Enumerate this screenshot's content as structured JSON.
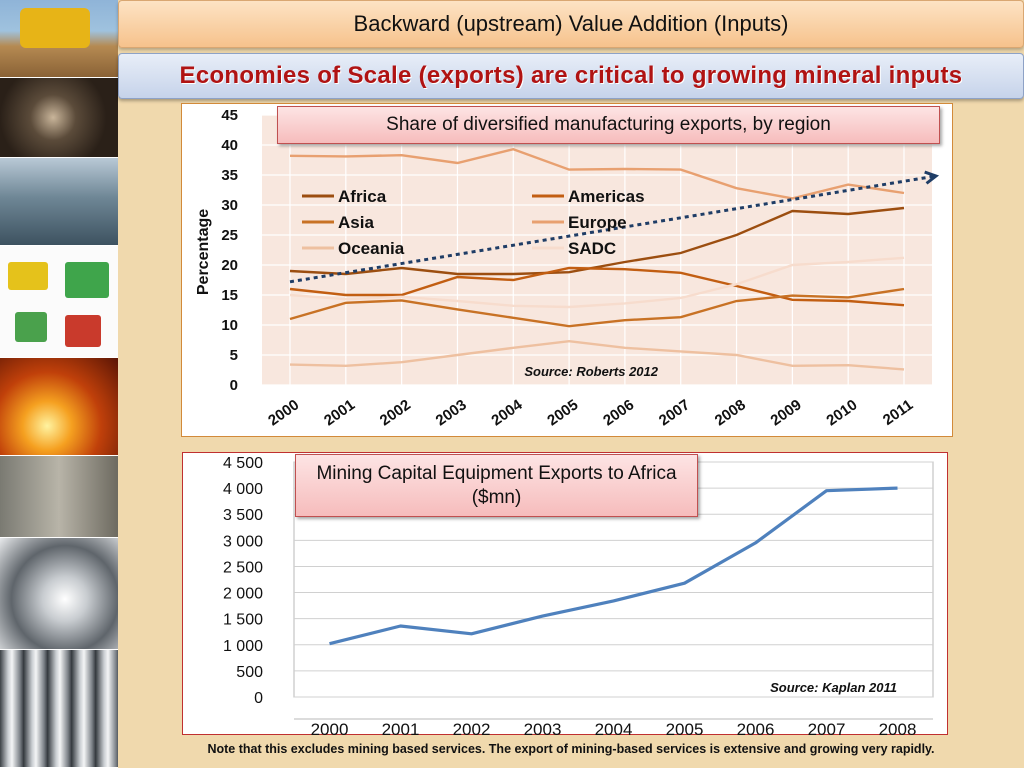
{
  "slide": {
    "title": "Backward (upstream) Value Addition (Inputs)",
    "subtitle": "Economies of Scale (exports) are critical to growing mineral inputs",
    "note": "Note that this excludes mining based services. The export of mining-based services is extensive and growing very rapidly."
  },
  "side_images": [
    "mining-truck",
    "underground-tunnel",
    "thickener-plant",
    "processing-equipment",
    "molten-metal-pour",
    "mill-machinery",
    "steel-coil",
    "steel-pipes"
  ],
  "chart_data": [
    {
      "type": "line",
      "title": "Share of diversified manufacturing exports, by region",
      "source": "Source: Roberts 2012",
      "ylabel": "Percentage",
      "xlabel": "",
      "categories": [
        "2000",
        "2001",
        "2002",
        "2003",
        "2004",
        "2005",
        "2006",
        "2007",
        "2008",
        "2009",
        "2010",
        "2011"
      ],
      "yticks": [
        "0",
        "5",
        "10",
        "15",
        "20",
        "25",
        "30",
        "35",
        "40",
        "45"
      ],
      "ylim": [
        0,
        45
      ],
      "grid": true,
      "legend_position": "upper-left, two columns",
      "series": [
        {
          "name": "Africa",
          "color": "#9c4e10",
          "values": [
            19,
            18.5,
            19.5,
            18.5,
            18.5,
            18.8,
            20.5,
            22,
            25,
            29,
            28.5,
            29.5
          ]
        },
        {
          "name": "Americas",
          "color": "#c25e12",
          "values": [
            16,
            15,
            15,
            18,
            17.5,
            19.5,
            19.3,
            18.7,
            16.5,
            14.2,
            14,
            13.3
          ]
        },
        {
          "name": "Asia",
          "color": "#c87225",
          "values": [
            11,
            13.7,
            14.1,
            12.6,
            11.2,
            9.8,
            10.8,
            11.3,
            14,
            14.9,
            14.6,
            16
          ]
        },
        {
          "name": "Europe",
          "color": "#e8a070",
          "values": [
            38.2,
            38.1,
            38.3,
            37,
            39.3,
            35.9,
            36,
            35.9,
            32.8,
            31.1,
            33.4,
            32
          ]
        },
        {
          "name": "Oceania",
          "color": "#eec0a0",
          "values": [
            3.4,
            3.2,
            3.8,
            5,
            6.2,
            7.3,
            6.2,
            5.6,
            5,
            3.2,
            3.3,
            2.6
          ]
        },
        {
          "name": "SADC",
          "color": "#f7dccd",
          "values": [
            15,
            14.3,
            14.7,
            14,
            13.2,
            13,
            13.6,
            14.5,
            16.8,
            20,
            20.5,
            21.2
          ]
        }
      ],
      "trend_arrow": {
        "color": "#1f3d66",
        "from": [
          2000,
          17.2
        ],
        "to": [
          2011,
          34.5
        ]
      }
    },
    {
      "type": "line",
      "title": "Mining Capital Equipment Exports to Africa ($mn)",
      "source": "Source: Kaplan 2011",
      "categories": [
        "2000",
        "2001",
        "2002",
        "2003",
        "2004",
        "2005",
        "2006",
        "2007",
        "2008"
      ],
      "yticks": [
        "0",
        "500",
        "1 000",
        "1 500",
        "2 000",
        "2 500",
        "3 000",
        "3 500",
        "4 000",
        "4 500"
      ],
      "ylim": [
        0,
        4500
      ],
      "grid": true,
      "series": [
        {
          "color": "#4f81bd",
          "values": [
            1020,
            1360,
            1210,
            1550,
            1840,
            2180,
            2950,
            3950,
            4000
          ]
        }
      ]
    }
  ]
}
